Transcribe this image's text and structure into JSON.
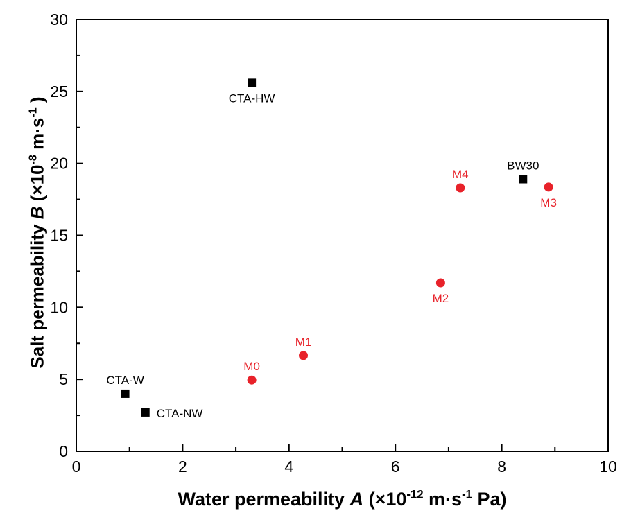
{
  "chart_data": {
    "type": "scatter",
    "xlim": [
      0,
      10
    ],
    "ylim": [
      0,
      30
    ],
    "x_major_ticks": [
      0,
      2,
      4,
      6,
      8,
      10
    ],
    "y_major_ticks": [
      0,
      5,
      10,
      15,
      20,
      25,
      30
    ],
    "x_tick_labels": [
      "0",
      "2",
      "4",
      "6",
      "8",
      "10"
    ],
    "y_tick_labels": [
      "0",
      "5",
      "10",
      "15",
      "20",
      "25",
      "30"
    ],
    "grid": false,
    "xlabel": {
      "pre": "Water permeability ",
      "italic": "A",
      "mid": " (×10",
      "sup1": "-12",
      "mid2": " m·s",
      "sup2": "-1",
      "post": " Pa)"
    },
    "ylabel": {
      "pre": "Salt permeability ",
      "italic": "B",
      "mid": " (×10",
      "sup1": "-8",
      "mid2": " m·s",
      "sup2": "-1",
      "post": " )"
    },
    "series": [
      {
        "marker": "square",
        "color": "#000000",
        "points": [
          {
            "label": "CTA-W",
            "x": 0.92,
            "y": 4.0,
            "label_pos": "above"
          },
          {
            "label": "CTA-NW",
            "x": 1.3,
            "y": 2.7,
            "label_pos": "right"
          },
          {
            "label": "CTA-HW",
            "x": 3.3,
            "y": 25.6,
            "label_pos": "below"
          },
          {
            "label": "BW30",
            "x": 8.4,
            "y": 18.9,
            "label_pos": "above"
          }
        ]
      },
      {
        "marker": "circle",
        "color": "#e8222a",
        "points": [
          {
            "label": "M0",
            "x": 3.3,
            "y": 4.95,
            "label_pos": "above"
          },
          {
            "label": "M1",
            "x": 4.27,
            "y": 6.65,
            "label_pos": "above"
          },
          {
            "label": "M2",
            "x": 6.85,
            "y": 11.7,
            "label_pos": "below"
          },
          {
            "label": "M3",
            "x": 8.88,
            "y": 18.35,
            "label_pos": "below"
          },
          {
            "label": "M4",
            "x": 7.22,
            "y": 18.3,
            "label_pos": "above"
          }
        ]
      }
    ]
  }
}
